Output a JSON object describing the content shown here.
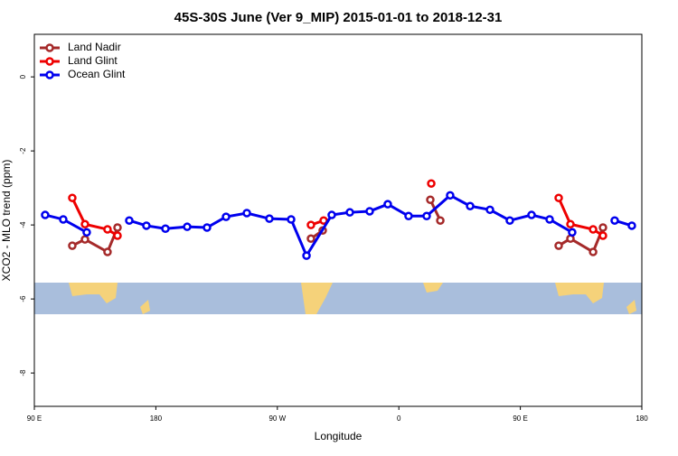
{
  "chart_data": {
    "type": "line",
    "title": "45S-30S June (Ver 9_MIP)   2015-01-01 to 2018-12-31",
    "x_label": "Longitude",
    "y_label": "XCO2 - MLO trend (ppm)",
    "xlim": [
      90,
      540
    ],
    "ylim": [
      -8.9,
      1.15
    ],
    "xticks": [
      {
        "value": 90,
        "label": "90 E"
      },
      {
        "value": 180,
        "label": "180"
      },
      {
        "value": 270,
        "label": "90 W"
      },
      {
        "value": 360,
        "label": "0"
      },
      {
        "value": 450,
        "label": "90 E"
      },
      {
        "value": 540,
        "label": "180"
      }
    ],
    "yticks": [
      0,
      -2,
      -4,
      -6,
      -8
    ],
    "legend": "top-left",
    "series": [
      {
        "name": "Land Nadir",
        "color": "#a52a2a",
        "x": [
          118.1,
          127.5,
          144.2,
          151.6,
          null,
          294.9,
          303.6,
          null,
          383.3,
          390.7,
          null,
          478.4,
          487.1,
          503.9,
          511.2
        ],
        "values": [
          -4.56,
          -4.39,
          -4.73,
          -4.07,
          null,
          -4.37,
          -4.15,
          null,
          -3.32,
          -3.88,
          null,
          -4.56,
          -4.37,
          -4.73,
          -4.07
        ]
      },
      {
        "name": "Land Glint",
        "color": "#ee0000",
        "x": [
          118.1,
          127.5,
          144.2,
          151.6,
          null,
          294.9,
          304.3,
          null,
          384.0,
          null,
          478.4,
          487.1,
          503.9,
          511.2
        ],
        "values": [
          -3.27,
          -3.98,
          -4.12,
          -4.29,
          null,
          -4.0,
          -3.88,
          null,
          -2.88,
          null,
          -3.27,
          -3.98,
          -4.12,
          -4.29
        ]
      },
      {
        "name": "Ocean Glint",
        "color": "#0000ee",
        "x": [
          98.0,
          111.4,
          128.8,
          null,
          160.3,
          173.0,
          187.1,
          203.2,
          217.9,
          232.0,
          247.4,
          264.1,
          280.2,
          291.6,
          310.3,
          323.7,
          338.4,
          351.8,
          367.2,
          380.6,
          398.0,
          412.8,
          427.5,
          442.2,
          458.3,
          471.7,
          488.4,
          null,
          519.9,
          532.6
        ],
        "values": [
          -3.73,
          -3.85,
          -4.2,
          null,
          -3.88,
          -4.02,
          -4.1,
          -4.05,
          -4.07,
          -3.78,
          -3.68,
          -3.83,
          -3.85,
          -4.83,
          -3.73,
          -3.66,
          -3.63,
          -3.44,
          -3.76,
          -3.76,
          -3.2,
          -3.49,
          -3.59,
          -3.88,
          -3.73,
          -3.85,
          -4.2,
          null,
          -3.88,
          -4.02
        ]
      }
    ]
  }
}
